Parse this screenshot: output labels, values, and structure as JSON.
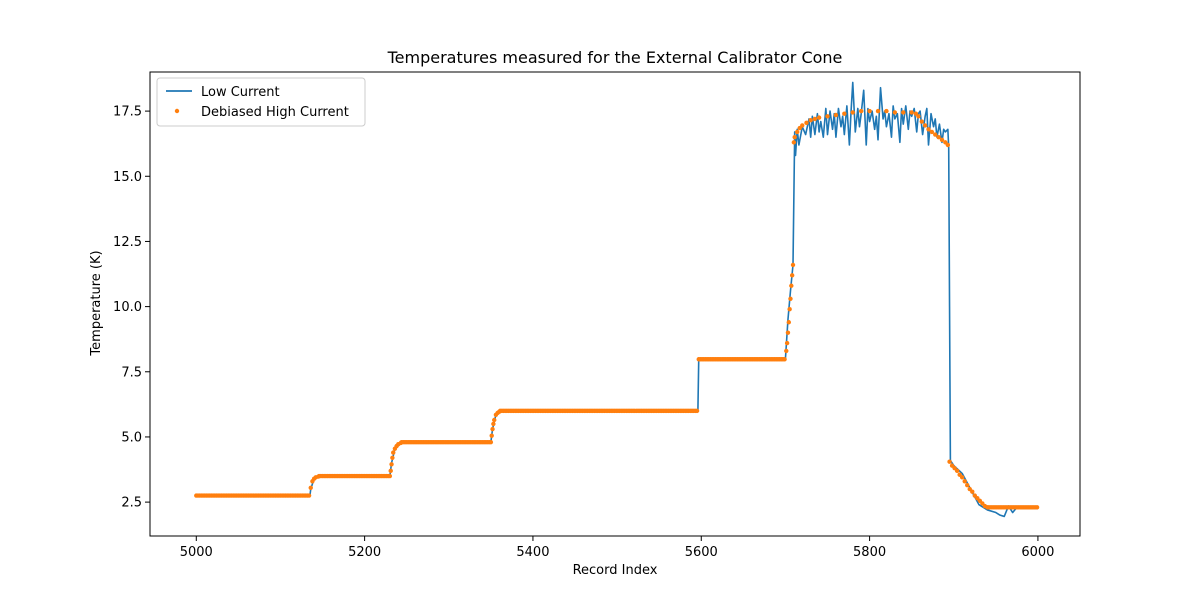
{
  "chart_data": {
    "type": "line",
    "title": "Temperatures measured for the External Calibrator Cone",
    "xlabel": "Record Index",
    "ylabel": "Temperature (K)",
    "xlim": [
      4945,
      6050
    ],
    "ylim": [
      1.2,
      19.0
    ],
    "x_ticks": [
      5000,
      5200,
      5400,
      5600,
      5800,
      6000
    ],
    "x_tick_labels": [
      "5000",
      "5200",
      "5400",
      "5600",
      "5800",
      "6000"
    ],
    "y_ticks": [
      2.5,
      5.0,
      7.5,
      10.0,
      12.5,
      15.0,
      17.5
    ],
    "y_tick_labels": [
      "2.5",
      "5.0",
      "7.5",
      "10.0",
      "12.5",
      "15.0",
      "17.5"
    ],
    "grid": false,
    "legend_position": "upper-left",
    "series": [
      {
        "name": "Low Current",
        "style": "line",
        "color": "#1f77b4",
        "x": [
          5000,
          5135,
          5136,
          5140,
          5150,
          5230,
          5232,
          5236,
          5245,
          5350,
          5352,
          5356,
          5362,
          5596,
          5597,
          5600,
          5630,
          5660,
          5700,
          5703,
          5706,
          5709,
          5711,
          5712,
          5714,
          5716,
          5720,
          5724,
          5728,
          5730,
          5732,
          5735,
          5738,
          5740,
          5742,
          5745,
          5748,
          5750,
          5753,
          5756,
          5758,
          5760,
          5763,
          5766,
          5768,
          5770,
          5773,
          5776,
          5778,
          5780,
          5783,
          5786,
          5788,
          5790,
          5793,
          5796,
          5798,
          5800,
          5803,
          5806,
          5808,
          5810,
          5813,
          5816,
          5818,
          5820,
          5823,
          5826,
          5828,
          5830,
          5833,
          5836,
          5838,
          5840,
          5843,
          5846,
          5848,
          5850,
          5853,
          5856,
          5858,
          5860,
          5863,
          5866,
          5868,
          5870,
          5873,
          5876,
          5878,
          5880,
          5883,
          5886,
          5888,
          5890,
          5893,
          5894,
          5895,
          5896,
          5900,
          5910,
          5920,
          5930,
          5940,
          5950,
          5955,
          5960,
          5965,
          5970,
          5975,
          5980,
          6000
        ],
        "y": [
          2.75,
          2.75,
          3.0,
          3.4,
          3.5,
          3.5,
          4.0,
          4.55,
          4.8,
          4.8,
          5.3,
          5.85,
          6.0,
          6.0,
          8.0,
          7.95,
          8.0,
          7.95,
          8.0,
          9.5,
          10.6,
          11.6,
          16.7,
          15.8,
          16.8,
          16.2,
          16.9,
          16.6,
          17.2,
          16.5,
          17.3,
          16.6,
          17.4,
          16.7,
          17.1,
          16.5,
          17.6,
          16.6,
          17.5,
          16.8,
          17.4,
          16.5,
          17.6,
          16.9,
          17.3,
          16.6,
          17.7,
          16.2,
          17.5,
          18.6,
          16.7,
          17.6,
          16.9,
          17.4,
          18.3,
          16.2,
          17.6,
          17.1,
          17.5,
          16.8,
          17.3,
          16.4,
          18.4,
          17.2,
          17.5,
          16.9,
          17.4,
          16.5,
          17.7,
          17.2,
          17.4,
          16.3,
          17.6,
          17.0,
          17.7,
          16.8,
          17.5,
          17.3,
          17.6,
          16.7,
          17.4,
          17.5,
          16.6,
          17.3,
          17.6,
          16.2,
          17.4,
          16.9,
          17.2,
          16.5,
          17.0,
          16.3,
          16.8,
          16.7,
          16.8,
          16.1,
          10.0,
          4.1,
          3.9,
          3.6,
          3.0,
          2.4,
          2.2,
          2.1,
          2.0,
          1.95,
          2.35,
          2.1,
          2.3,
          2.25,
          2.25
        ]
      },
      {
        "name": "Debiased High Current",
        "style": "scatter",
        "color": "#ff7f0e",
        "segments": [
          {
            "x_start": 5000,
            "x_end": 5135,
            "y": 2.75
          },
          {
            "x": [
              5136,
              5138,
              5140,
              5142,
              5145
            ],
            "y": [
              3.05,
              3.3,
              3.4,
              3.45,
              3.48
            ]
          },
          {
            "x_start": 5146,
            "x_end": 5230,
            "y": 3.5
          },
          {
            "x": [
              5231,
              5232,
              5233,
              5234,
              5236,
              5238,
              5240,
              5243
            ],
            "y": [
              3.7,
              3.95,
              4.2,
              4.4,
              4.55,
              4.65,
              4.72,
              4.77
            ]
          },
          {
            "x_start": 5244,
            "x_end": 5350,
            "y": 4.8
          },
          {
            "x": [
              5351,
              5352,
              5353,
              5354,
              5356,
              5358,
              5360
            ],
            "y": [
              5.05,
              5.3,
              5.5,
              5.65,
              5.85,
              5.92,
              5.97
            ]
          },
          {
            "x_start": 5361,
            "x_end": 5596,
            "y": 6.0
          },
          {
            "x_start": 5597,
            "x_end": 5700,
            "y": 7.98
          },
          {
            "x": [
              5701,
              5702,
              5703,
              5704,
              5705,
              5706,
              5707,
              5708,
              5709,
              5710
            ],
            "y": [
              8.3,
              8.6,
              9.0,
              9.4,
              9.9,
              10.3,
              10.8,
              11.2,
              11.6,
              16.3
            ]
          },
          {
            "x": [
              5711,
              5714,
              5717,
              5720,
              5725,
              5730,
              5735,
              5740,
              5750,
              5760,
              5770,
              5780,
              5790,
              5800,
              5810,
              5820,
              5830,
              5840,
              5850,
              5855
            ],
            "y": [
              16.5,
              16.7,
              16.85,
              16.95,
              17.05,
              17.15,
              17.2,
              17.25,
              17.3,
              17.35,
              17.4,
              17.45,
              17.5,
              17.5,
              17.5,
              17.5,
              17.45,
              17.45,
              17.45,
              17.4
            ]
          },
          {
            "x": [
              5858,
              5862,
              5866,
              5870,
              5874,
              5878,
              5882,
              5886,
              5890,
              5893
            ],
            "y": [
              17.3,
              17.1,
              16.95,
              16.8,
              16.7,
              16.6,
              16.5,
              16.4,
              16.3,
              16.2
            ]
          },
          {
            "x": [
              5895,
              5898,
              5901,
              5904,
              5907,
              5910,
              5913,
              5916,
              5919,
              5922,
              5925,
              5928,
              5931,
              5934,
              5937,
              5940
            ],
            "y": [
              4.05,
              3.9,
              3.8,
              3.7,
              3.55,
              3.45,
              3.3,
              3.15,
              3.0,
              2.9,
              2.75,
              2.65,
              2.55,
              2.45,
              2.35,
              2.3
            ]
          },
          {
            "x_start": 5941,
            "x_end": 6000,
            "y": 2.3
          }
        ]
      }
    ]
  }
}
